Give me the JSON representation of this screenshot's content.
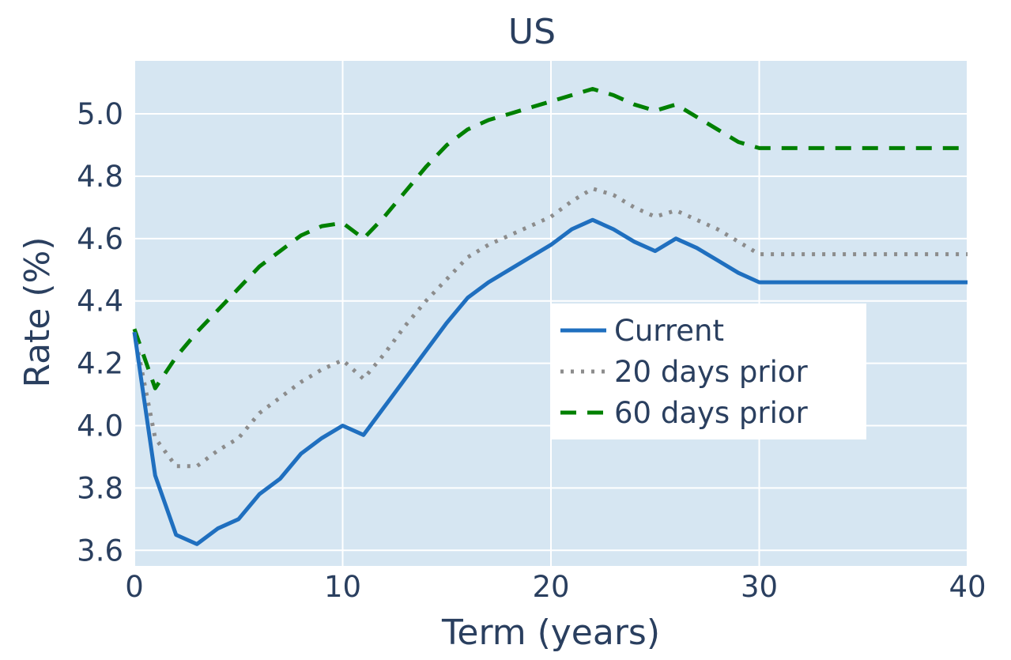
{
  "chart_data": {
    "type": "line",
    "title": "US",
    "xlabel": "Term (years)",
    "ylabel": "Rate (%)",
    "xlim": [
      0,
      40
    ],
    "ylim": [
      3.55,
      5.17
    ],
    "xticks": [
      0,
      10,
      20,
      30,
      40
    ],
    "xtick_labels": [
      "0",
      "10",
      "20",
      "30",
      "40"
    ],
    "yticks": [
      3.6,
      3.8,
      4.0,
      4.2,
      4.4,
      4.6,
      4.8,
      5.0
    ],
    "ytick_labels": [
      "3.6",
      "3.8",
      "4.0",
      "4.2",
      "4.4",
      "4.6",
      "4.8",
      "5.0"
    ],
    "grid": true,
    "legend_position": "center-right",
    "plot_bgcolor": "#d6e6f2",
    "series": [
      {
        "name": "Current",
        "color": "#1f6fbf",
        "dash": "solid",
        "x": [
          0,
          1,
          2,
          3,
          4,
          5,
          6,
          7,
          8,
          9,
          10,
          11,
          12,
          13,
          14,
          15,
          16,
          17,
          18,
          19,
          20,
          21,
          22,
          23,
          24,
          25,
          26,
          27,
          28,
          29,
          30,
          40
        ],
        "values": [
          4.3,
          3.84,
          3.65,
          3.62,
          3.67,
          3.7,
          3.78,
          3.83,
          3.91,
          3.96,
          4.0,
          3.97,
          4.06,
          4.15,
          4.24,
          4.33,
          4.41,
          4.46,
          4.5,
          4.54,
          4.58,
          4.63,
          4.66,
          4.63,
          4.59,
          4.56,
          4.6,
          4.57,
          4.53,
          4.49,
          4.46,
          4.46
        ]
      },
      {
        "name": "20 days prior",
        "color": "#8c8c8c",
        "dash": "dot",
        "x": [
          0,
          1,
          2,
          3,
          4,
          5,
          6,
          7,
          8,
          9,
          10,
          11,
          12,
          13,
          14,
          15,
          16,
          17,
          18,
          19,
          20,
          21,
          22,
          23,
          24,
          25,
          26,
          27,
          28,
          29,
          30,
          40
        ],
        "values": [
          4.3,
          3.96,
          3.87,
          3.87,
          3.92,
          3.96,
          4.04,
          4.09,
          4.14,
          4.18,
          4.21,
          4.15,
          4.23,
          4.32,
          4.4,
          4.47,
          4.54,
          4.58,
          4.61,
          4.64,
          4.67,
          4.72,
          4.76,
          4.74,
          4.7,
          4.67,
          4.69,
          4.66,
          4.63,
          4.59,
          4.55,
          4.55
        ]
      },
      {
        "name": "60 days prior",
        "color": "#008000",
        "dash": "dash",
        "x": [
          0,
          1,
          2,
          3,
          4,
          5,
          6,
          7,
          8,
          9,
          10,
          11,
          12,
          13,
          14,
          15,
          16,
          17,
          18,
          19,
          20,
          21,
          22,
          23,
          24,
          25,
          26,
          27,
          28,
          29,
          30,
          40
        ],
        "values": [
          4.31,
          4.12,
          4.22,
          4.3,
          4.37,
          4.44,
          4.51,
          4.56,
          4.61,
          4.64,
          4.65,
          4.6,
          4.67,
          4.75,
          4.83,
          4.9,
          4.95,
          4.98,
          5.0,
          5.02,
          5.04,
          5.06,
          5.08,
          5.06,
          5.03,
          5.01,
          5.03,
          4.99,
          4.95,
          4.91,
          4.89,
          4.89
        ]
      }
    ]
  }
}
